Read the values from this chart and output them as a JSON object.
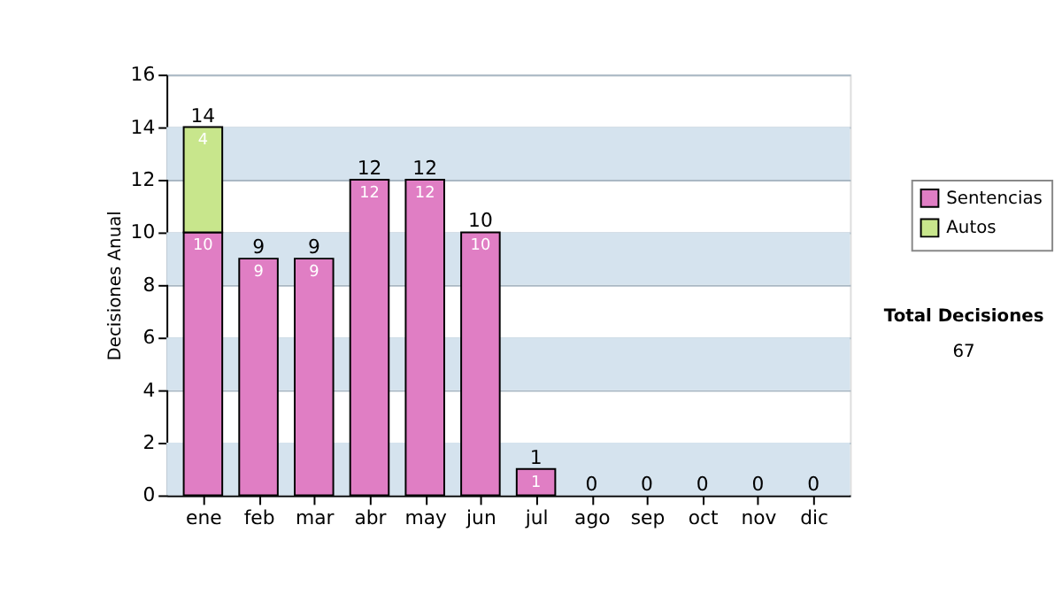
{
  "chart_data": {
    "type": "bar",
    "stacked": true,
    "ylabel": "Decisiones Anual",
    "categories": [
      "ene",
      "feb",
      "mar",
      "abr",
      "may",
      "jun",
      "jul",
      "ago",
      "sep",
      "oct",
      "nov",
      "dic"
    ],
    "series": [
      {
        "name": "Sentencias",
        "color": "#e07ec4",
        "values": [
          10,
          9,
          9,
          12,
          12,
          10,
          1,
          0,
          0,
          0,
          0,
          0
        ],
        "value_labels": [
          "10",
          "9",
          "9",
          "12",
          "12",
          "10",
          "1",
          null,
          null,
          null,
          null,
          null
        ]
      },
      {
        "name": "Autos",
        "color": "#c8e68c",
        "values": [
          4,
          0,
          0,
          0,
          0,
          0,
          0,
          0,
          0,
          0,
          0,
          0
        ],
        "value_labels": [
          "4",
          null,
          null,
          null,
          null,
          null,
          null,
          null,
          null,
          null,
          null,
          null
        ]
      }
    ],
    "totals": [
      "14",
      "9",
      "9",
      "12",
      "12",
      "10",
      "1",
      "0",
      "0",
      "0",
      "0",
      "0"
    ],
    "ylim": [
      0,
      16
    ],
    "yticks": [
      0,
      2,
      4,
      6,
      8,
      10,
      12,
      14,
      16
    ],
    "grid": "y",
    "legend": "right",
    "annotations": [
      "Total Decisiones",
      "67"
    ]
  }
}
